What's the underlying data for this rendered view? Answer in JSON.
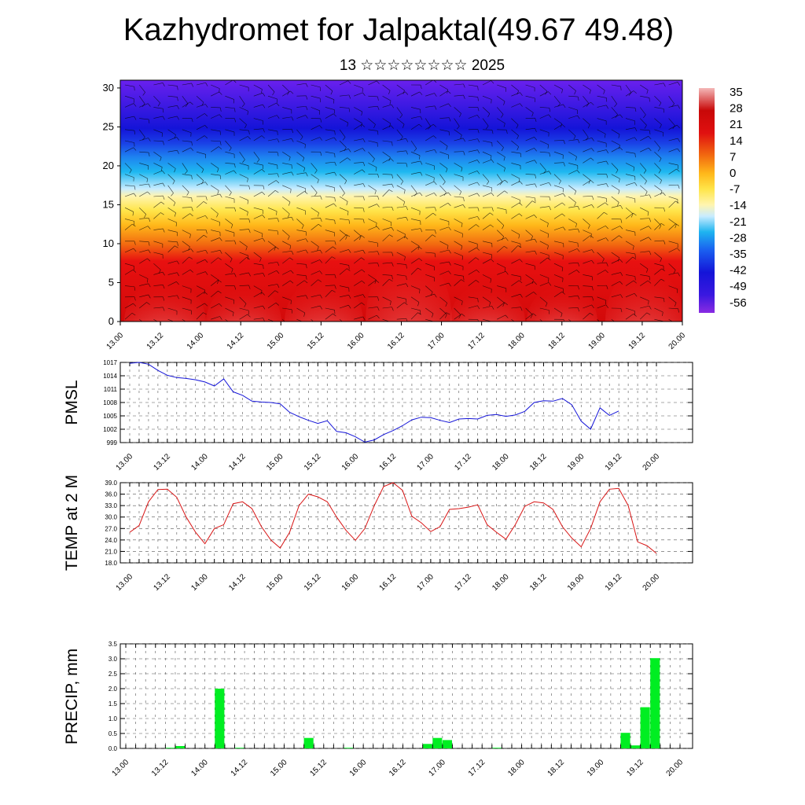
{
  "header": {
    "title": "Kazhydromet for Jalpaktal(49.67 49.48)",
    "subtitle": "13 ☆☆☆☆☆☆☆☆ 2025"
  },
  "colors": {
    "pmsl_line": "#1515d8",
    "temp_line": "#d81515",
    "precip_bar": "#00ee22"
  },
  "chart_data": [
    {
      "type": "heatmap",
      "title": "",
      "xlabel": "",
      "ylabel": "",
      "x_ticks": [
        "13.00",
        "13.12",
        "14.00",
        "14.12",
        "15.00",
        "15.12",
        "16.00",
        "16.12",
        "17.00",
        "17.12",
        "18.00",
        "18.12",
        "19.00",
        "19.12",
        "20.00"
      ],
      "y_ticks": [
        "0",
        "5",
        "10",
        "15",
        "20",
        "25",
        "30"
      ],
      "ylim": [
        0,
        31
      ],
      "colorbar_labels": [
        "35",
        "28",
        "21",
        "14",
        "7",
        "0",
        "-7",
        "-14",
        "-21",
        "-28",
        "-35",
        "-42",
        "-49",
        "-56"
      ],
      "colorbar_range": [
        -63,
        42
      ],
      "overlay": "wind barbs"
    },
    {
      "type": "line",
      "ylabel": "PMSL",
      "ylim": [
        999,
        1017
      ],
      "y_ticks": [
        "1017",
        "1014",
        "1011",
        "1008",
        "1005",
        "1002",
        "999"
      ],
      "x_ticks": [
        "13.00",
        "13.12",
        "14.00",
        "14.12",
        "15.00",
        "15.12",
        "16.00",
        "16.12",
        "17.00",
        "17.12",
        "18.00",
        "18.12",
        "19.00",
        "19.12",
        "20.00"
      ],
      "step_hours": 3,
      "values": [
        1016.8,
        1017.0,
        1016.6,
        1015.2,
        1014.1,
        1013.6,
        1013.4,
        1013.1,
        1012.6,
        1011.7,
        1013.3,
        1010.4,
        1009.6,
        1008.3,
        1008.1,
        1008.0,
        1007.7,
        1005.8,
        1004.8,
        1004.0,
        1003.3,
        1003.9,
        1001.5,
        1001.2,
        1000.3,
        999.1,
        999.6,
        1000.8,
        1001.7,
        1002.8,
        1004.1,
        1004.7,
        1004.6,
        1004.0,
        1003.5,
        1004.3,
        1004.4,
        1004.3,
        1005.1,
        1005.3,
        1004.9,
        1005.2,
        1006.0,
        1008.0,
        1008.4,
        1008.3,
        1008.9,
        1007.5,
        1003.8,
        1002.0,
        1006.8,
        1005.1,
        1006.1
      ]
    },
    {
      "type": "line",
      "ylabel": "TEMP at 2 M",
      "ylim": [
        18,
        39
      ],
      "y_ticks": [
        "39.0",
        "36.0",
        "33.0",
        "30.0",
        "27.0",
        "24.0",
        "21.0",
        "18.0"
      ],
      "x_ticks": [
        "13.00",
        "13.12",
        "14.00",
        "14.12",
        "15.00",
        "15.12",
        "16.00",
        "16.12",
        "17.00",
        "17.12",
        "18.00",
        "18.12",
        "19.00",
        "19.12",
        "20.00"
      ],
      "step_hours": 3,
      "values": [
        26.0,
        27.8,
        34.0,
        37.2,
        37.3,
        35.2,
        30.0,
        26.0,
        23.0,
        27.0,
        28.0,
        33.5,
        34.0,
        32.2,
        27.5,
        24.0,
        21.9,
        26.0,
        33.0,
        36.0,
        35.3,
        34.0,
        30.0,
        26.5,
        23.9,
        27.0,
        33.0,
        38.0,
        39.0,
        37.0,
        30.2,
        28.5,
        26.2,
        27.5,
        32.0,
        32.2,
        32.6,
        33.2,
        28.0,
        26.0,
        24.2,
        28.0,
        32.8,
        34.0,
        33.7,
        32.0,
        27.5,
        24.5,
        22.2,
        27.0,
        34.0,
        37.3,
        37.5,
        33.0,
        23.5,
        22.5,
        20.5
      ]
    },
    {
      "type": "bar",
      "ylabel": "PRECIP, mm",
      "ylim": [
        0,
        3.5
      ],
      "y_ticks": [
        "3.5",
        "3.0",
        "2.5",
        "2.0",
        "1.5",
        "1.0",
        "0.5",
        "0.0"
      ],
      "x_ticks": [
        "13.00",
        "13.12",
        "14.00",
        "14.12",
        "15.00",
        "15.12",
        "16.00",
        "16.12",
        "17.00",
        "17.12",
        "18.00",
        "18.12",
        "19.00",
        "19.12",
        "20.00"
      ],
      "step_hours": 3,
      "values": [
        0,
        0,
        0,
        0,
        0.02,
        0.08,
        0,
        0,
        0,
        2.0,
        0,
        0.02,
        0,
        0,
        0,
        0,
        0,
        0,
        0.35,
        0,
        0,
        0,
        0.02,
        0,
        0,
        0,
        0,
        0,
        0,
        0,
        0.15,
        0.35,
        0.28,
        0,
        0,
        0,
        0,
        0.02,
        0,
        0,
        0,
        0,
        0,
        0,
        0,
        0,
        0,
        0,
        0,
        0,
        0.52,
        0.1,
        1.38,
        3.02
      ]
    }
  ]
}
